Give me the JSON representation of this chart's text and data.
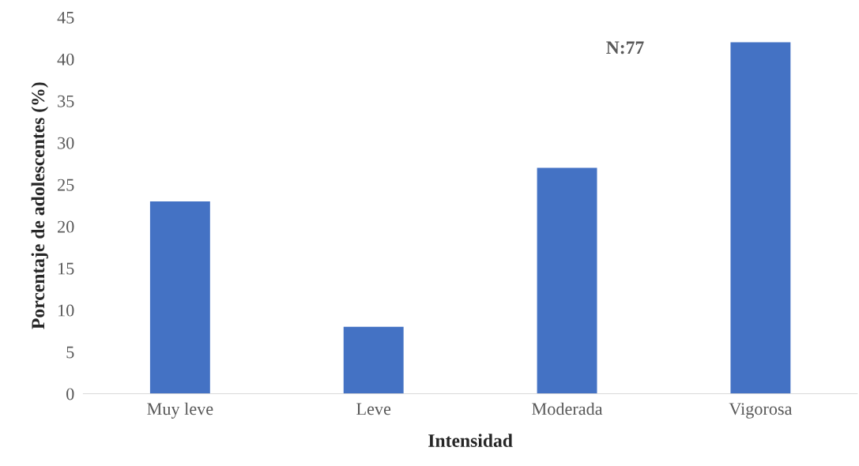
{
  "chart_data": {
    "type": "bar",
    "xlabel": "Intensidad",
    "ylabel": "Porcentaje de adolescentes (%)",
    "categories": [
      "Muy leve",
      "Leve",
      "Moderada",
      "Vigorosa"
    ],
    "values": [
      23,
      8,
      27,
      42
    ],
    "color": "#4472c4",
    "ylim": [
      0,
      45
    ],
    "yticks": [
      0,
      5,
      10,
      15,
      20,
      25,
      30,
      35,
      40,
      45
    ],
    "grid": false,
    "legend": false,
    "annotations": [
      "N:77"
    ]
  }
}
